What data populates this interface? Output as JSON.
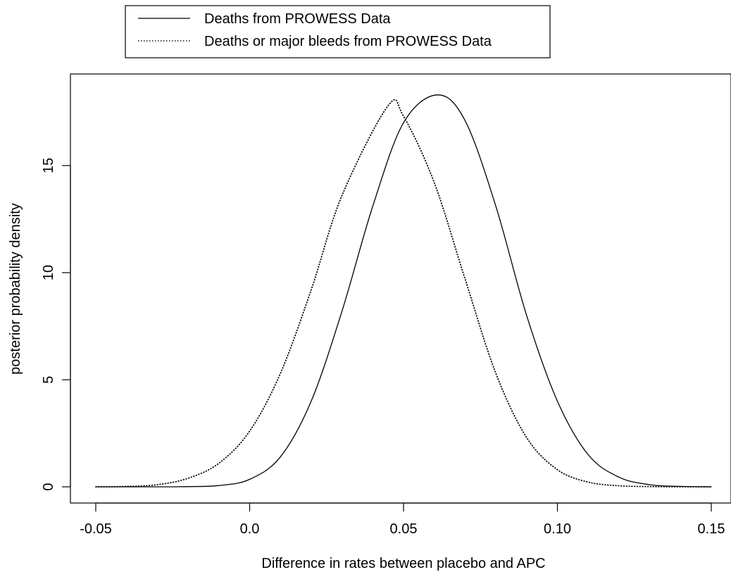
{
  "chart_data": {
    "type": "line",
    "title": "",
    "xlabel": "Difference in rates between placebo and APC",
    "ylabel": "posterior probability density",
    "xlim": [
      -0.05,
      0.15
    ],
    "ylim": [
      0,
      18.4
    ],
    "x_ticks": [
      "-0.05",
      "0.0",
      "0.05",
      "0.10",
      "0.15"
    ],
    "x_tick_values": [
      -0.05,
      0.0,
      0.05,
      0.1,
      0.15
    ],
    "y_ticks": [
      "0",
      "5",
      "10",
      "15"
    ],
    "y_tick_values": [
      0,
      5,
      10,
      15
    ],
    "grid": false,
    "legend_position": "top",
    "series": [
      {
        "name": "Deaths from PROWESS Data",
        "line_style": "solid",
        "color": "#000000",
        "x": [
          -0.05,
          -0.04,
          -0.03,
          -0.02,
          -0.01,
          0.0,
          0.01,
          0.02,
          0.03,
          0.04,
          0.05,
          0.061,
          0.07,
          0.08,
          0.09,
          0.1,
          0.11,
          0.12,
          0.13,
          0.14,
          0.15
        ],
        "y": [
          0.0,
          0.0,
          0.0,
          0.01,
          0.06,
          0.35,
          1.4,
          4.0,
          8.2,
          13.1,
          17.0,
          18.3,
          17.1,
          13.1,
          8.0,
          4.0,
          1.5,
          0.45,
          0.1,
          0.02,
          0.0
        ]
      },
      {
        "name": "Deaths or major bleeds from PROWESS Data",
        "line_style": "dotted",
        "color": "#000000",
        "x": [
          -0.05,
          -0.04,
          -0.03,
          -0.02,
          -0.01,
          0.0,
          0.01,
          0.02,
          0.03,
          0.045,
          0.05,
          0.06,
          0.07,
          0.08,
          0.09,
          0.1,
          0.11,
          0.12,
          0.13,
          0.14,
          0.15
        ],
        "y": [
          0.0,
          0.02,
          0.1,
          0.4,
          1.1,
          2.6,
          5.3,
          9.2,
          13.6,
          17.8,
          17.3,
          14.2,
          9.7,
          5.3,
          2.3,
          0.8,
          0.22,
          0.05,
          0.01,
          0.0,
          0.0
        ]
      }
    ]
  }
}
